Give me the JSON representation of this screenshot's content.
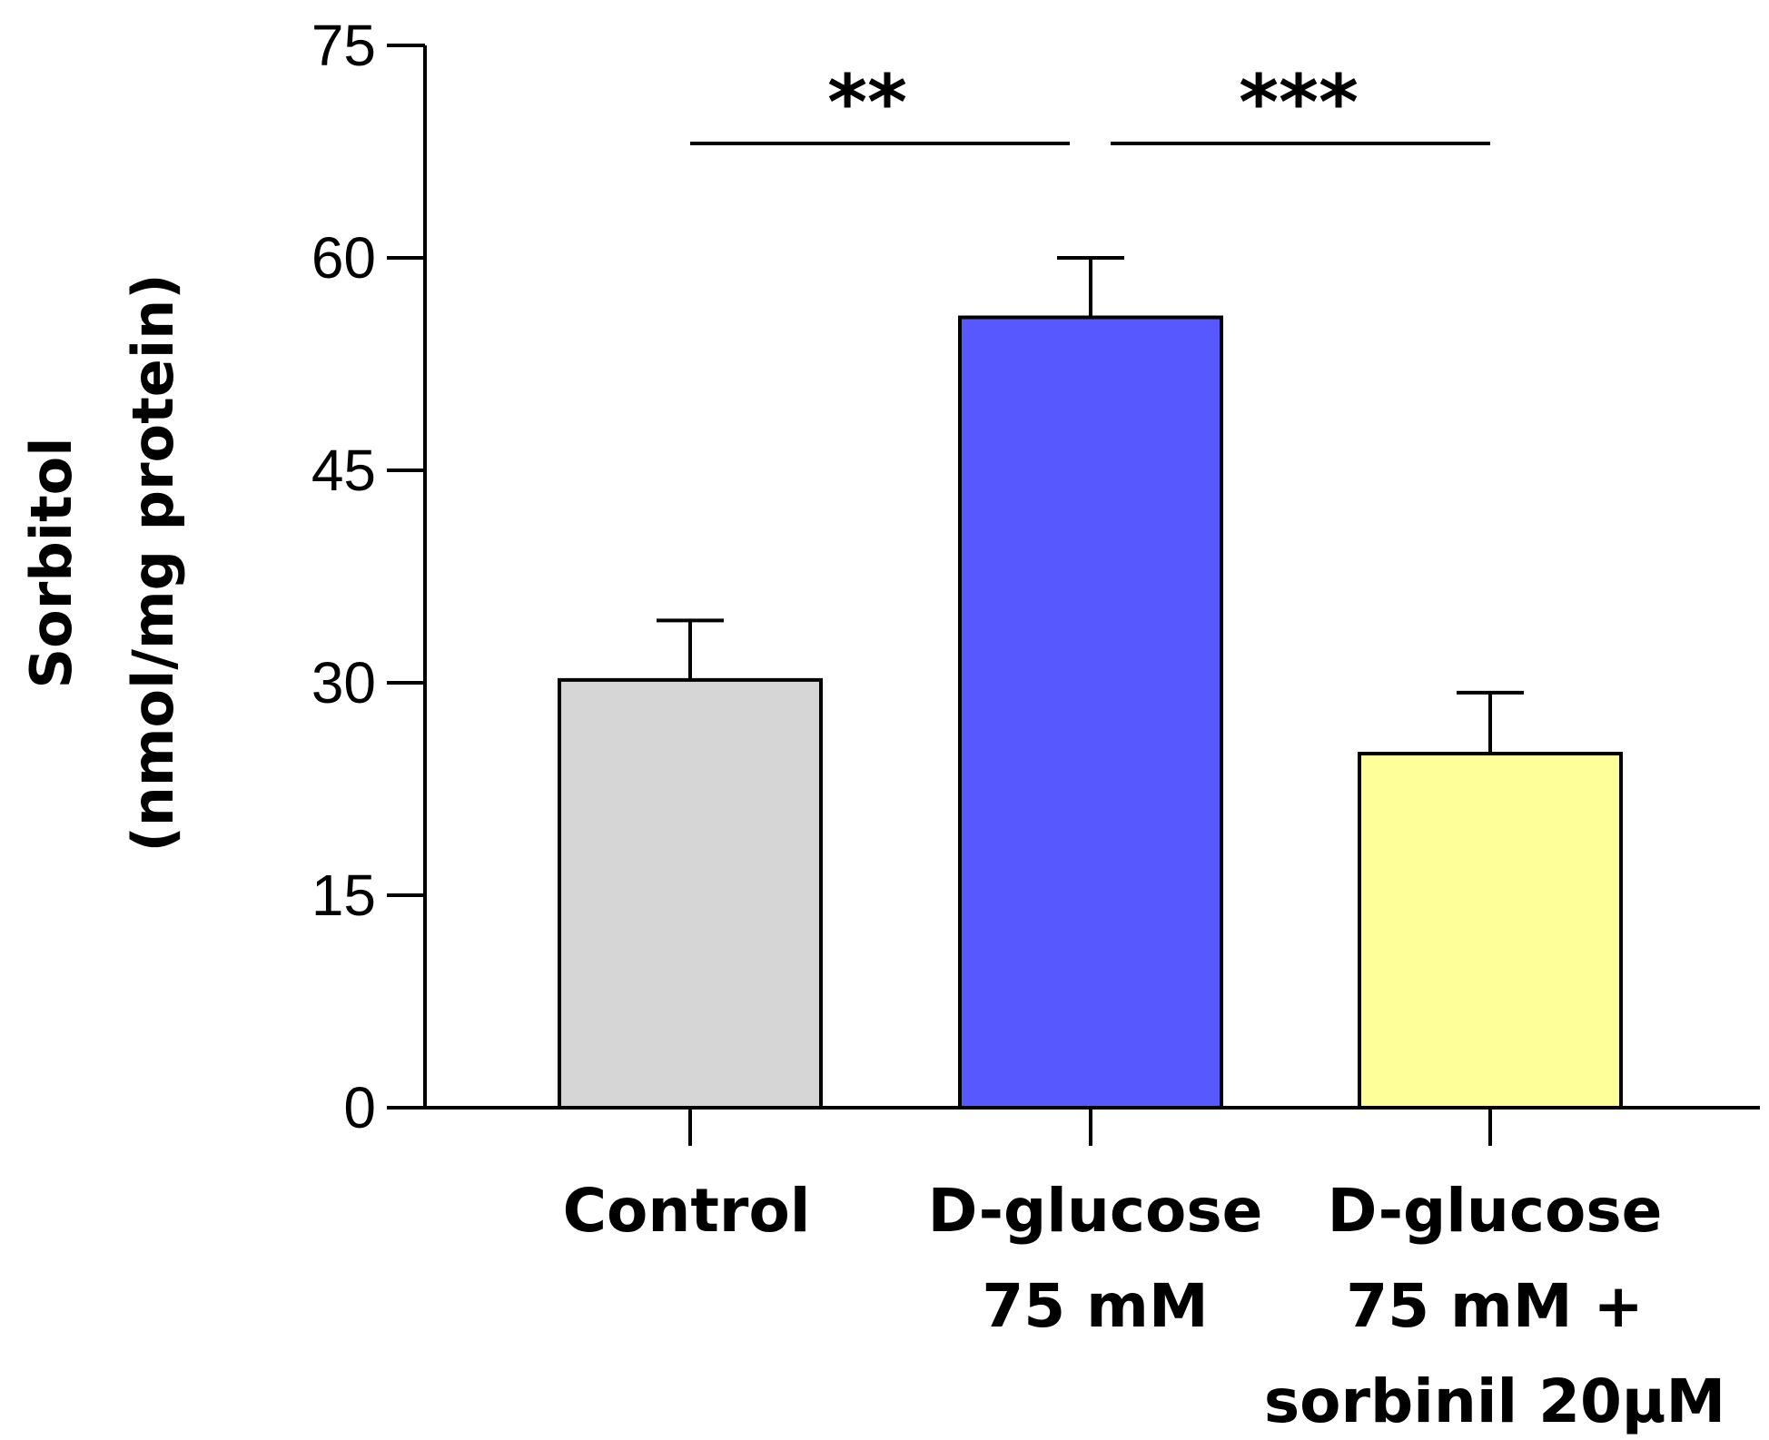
{
  "chart_data": {
    "type": "bar",
    "title": "",
    "xlabel": "",
    "ylabel": [
      "Sorbitol",
      "(nmol/mg protein)"
    ],
    "ylim": [
      0,
      75
    ],
    "yticks": [
      0,
      15,
      30,
      45,
      60,
      75
    ],
    "categories": [
      [
        "Control"
      ],
      [
        "D-glucose",
        "75 mM"
      ],
      [
        "D-glucose",
        "75 mM +",
        "sorbinil 20μM"
      ]
    ],
    "values": [
      30.2,
      55.8,
      25.0
    ],
    "errors": [
      4.2,
      4.2,
      4.3
    ],
    "colors": [
      "#d6d6d6",
      "#5858ff",
      "#ffff99"
    ],
    "significance": [
      {
        "from": 0,
        "to": 1,
        "label": "**"
      },
      {
        "from": 1,
        "to": 2,
        "label": "***"
      }
    ]
  }
}
